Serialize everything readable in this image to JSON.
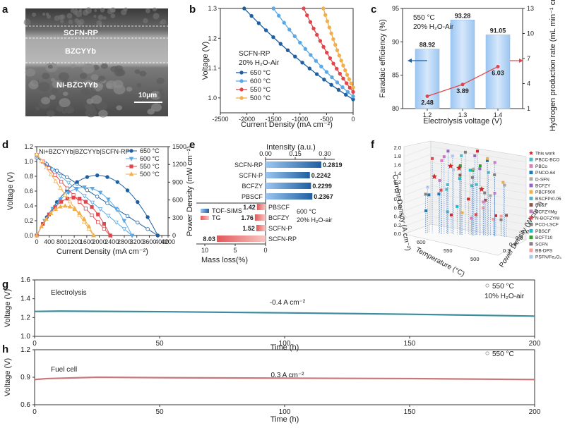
{
  "panels": {
    "a": "a",
    "b": "b",
    "c": "c",
    "d": "d",
    "e": "e",
    "f": "f",
    "g": "g",
    "h": "h"
  },
  "chart_data": [
    {
      "id": "a",
      "type": "other",
      "title": "SEM cross-section",
      "labels": [
        "SCFN-RP",
        "BZCYYb",
        "Ni-BZCYYb"
      ],
      "scale_bar": "10μm"
    },
    {
      "id": "b",
      "type": "line",
      "xlabel": "Current Density (mA cm⁻²)",
      "ylabel": "Voltage (V)",
      "xlim": [
        -2500,
        0
      ],
      "ylim": [
        0.95,
        1.3
      ],
      "xticks": [
        -2500,
        -2000,
        -1500,
        -1000,
        -500,
        0
      ],
      "yticks": [
        1.0,
        1.1,
        1.2,
        1.3
      ],
      "annotation": [
        "SCFN-RP",
        "20% H₂O-Air"
      ],
      "series": [
        {
          "name": "650 °C",
          "color": "#1f5fa0",
          "j0": -2050,
          "v0": 1.3,
          "ocv": 0.995
        },
        {
          "name": "600 °C",
          "color": "#5aa9e6",
          "j0": -1500,
          "v0": 1.3,
          "ocv": 1.005
        },
        {
          "name": "550 °C",
          "color": "#e0474c",
          "j0": -930,
          "v0": 1.3,
          "ocv": 1.02
        },
        {
          "name": "500 °C",
          "color": "#f2ae4a",
          "j0": -560,
          "v0": 1.3,
          "ocv": 1.035
        }
      ]
    },
    {
      "id": "c",
      "type": "bar",
      "xlabel": "Electrolysis voltage (V)",
      "ylabel": "Faradaic efficiency (%)",
      "ylabel_right": "Hydrogen production rate (mL min⁻¹ cm⁻²)",
      "categories": [
        "1.2",
        "1.3",
        "1.4"
      ],
      "values": [
        88.92,
        93.28,
        91.05
      ],
      "value_labels": [
        "88.92",
        "93.28",
        "91.05"
      ],
      "line_values": [
        2.48,
        3.89,
        6.03
      ],
      "line_labels": [
        "2.48",
        "3.89",
        "6.03"
      ],
      "ylim": [
        80,
        95
      ],
      "yticks": [
        80,
        85,
        90,
        95
      ],
      "ylim_right": [
        1,
        13
      ],
      "yticks_right": [
        1,
        4,
        7,
        10,
        13
      ],
      "annotation": [
        "550 °C",
        "20% H₂O-Air"
      ]
    },
    {
      "id": "d",
      "type": "line",
      "xlabel": "Current Density (mA cm⁻²)",
      "ylabel": "Voltage (V)",
      "ylabel_right": "Power Density (mW cm⁻²)",
      "xlim": [
        0,
        4200
      ],
      "ylim": [
        0,
        1.2
      ],
      "ylim_right": [
        0,
        1500
      ],
      "xticks": [
        0,
        400,
        800,
        1200,
        1600,
        2000,
        2400,
        2800,
        3200,
        3600,
        4000,
        4200
      ],
      "yticks": [
        0.0,
        0.2,
        0.4,
        0.6,
        0.8,
        1.0,
        1.2
      ],
      "yticks_right": [
        0,
        300,
        600,
        900,
        1200,
        1500
      ],
      "title": "Ni+BZCYYb|BZCYYb|SCFN-RP",
      "series": [
        {
          "name": "650 °C",
          "color": "#1f5fa0",
          "marker": "circle",
          "jmax": 3870,
          "ocv": 1.05
        },
        {
          "name": "600 °C",
          "color": "#5aa9e6",
          "marker": "tri-down",
          "jmax": 3050,
          "ocv": 1.07
        },
        {
          "name": "550 °C",
          "color": "#e0474c",
          "marker": "square",
          "jmax": 2350,
          "ocv": 1.09
        },
        {
          "name": "500 °C",
          "color": "#f2ae4a",
          "marker": "tri-up",
          "jmax": 1820,
          "ocv": 1.1
        }
      ]
    },
    {
      "id": "e",
      "type": "bar",
      "xlabel_top": "Intensity (a.u.)",
      "xlabel_bottom": "Mass loss(%)",
      "xticks_top": [
        "0.00",
        "0.15",
        "0.30"
      ],
      "xticks_bottom": [
        "10",
        "5",
        "0"
      ],
      "tof_categories": [
        "SCFN-RP",
        "SCFN-P",
        "BCFZY",
        "PBSCF"
      ],
      "tof_values": [
        0.2819,
        0.2242,
        0.2299,
        0.2367
      ],
      "tof_labels": [
        "0.2819",
        "0.2242",
        "0.2299",
        "0.2367"
      ],
      "tg_categories": [
        "PBSCF",
        "BCFZY",
        "SCFN-P",
        "SCFN-RP"
      ],
      "tg_values": [
        1.42,
        1.76,
        1.52,
        8.03
      ],
      "tg_labels": [
        "1.42",
        "1.76",
        "1.52",
        "8.03"
      ],
      "legend": [
        "TOF-SIMS",
        "TG"
      ],
      "annotation": [
        "600 °C",
        "20% H₂O-air"
      ]
    },
    {
      "id": "f",
      "type": "scatter",
      "xlabel": "Temperature (°C)",
      "ylabel": "Current Density (A cm⁻²)",
      "zlabel": "Power Density (W cm⁻²)",
      "zticks": [
        "0.0",
        "0.2",
        "0.4",
        "0.6",
        "0.8",
        "1.0",
        "1.2",
        "1.4",
        "1.6",
        "1.8",
        "2.0"
      ],
      "xticks": [
        "600",
        "550",
        "500"
      ],
      "pticks": [
        "0.3",
        "0.6",
        "0.9",
        "1.2"
      ],
      "legend": [
        "This work",
        "PBCC-BCO",
        "PBCo",
        "PNCO-64",
        "D-SFN",
        "BCFZY",
        "PBCF500",
        "BSCFPr0.05",
        "BSCF",
        "BCFZYMg",
        "N-BCFZYNi",
        "PCO-LSCF",
        "PBSCF",
        "BCFT10",
        "SCFN",
        "BB-DPS",
        "PSFN/Fe₂O₃"
      ],
      "legend_colors": [
        "#d62728",
        "#4cb6c4",
        "#e377c2",
        "#1f77b4",
        "#aaaaaa",
        "#9467bd",
        "#f2ae4a",
        "#4cb6c4",
        "#8c564b",
        "#c47ac4",
        "#e0474c",
        "#7f7f7f",
        "#17becf",
        "#2ca02c",
        "#7f7f7f",
        "#ff9896",
        "#aec7e8"
      ]
    },
    {
      "id": "g",
      "type": "line",
      "xlabel": "Time (h)",
      "ylabel": "Voltage (V)",
      "xlim": [
        0,
        200
      ],
      "ylim": [
        1.0,
        1.6
      ],
      "xticks": [
        0,
        50,
        100,
        150,
        200
      ],
      "yticks": [
        "1.0",
        "1.2",
        "1.4",
        "1.6"
      ],
      "title": "Electrolysis",
      "annotation": "-0.4 A cm⁻²",
      "legend": [
        "550 °C",
        "10% H₂O-air"
      ],
      "series": [
        {
          "name": "voltage",
          "color": "#3c8c9c",
          "x": [
            0,
            10,
            50,
            100,
            150,
            200
          ],
          "y": [
            1.265,
            1.268,
            1.262,
            1.25,
            1.235,
            1.215
          ]
        }
      ]
    },
    {
      "id": "h",
      "type": "line",
      "xlabel": "Time (h)",
      "ylabel": "Voltage (V)",
      "xlim": [
        0,
        200
      ],
      "ylim": [
        0.6,
        1.2
      ],
      "xticks": [
        0,
        50,
        100,
        150,
        200
      ],
      "yticks": [
        "0.6",
        "0.9",
        "1.2"
      ],
      "title": "Fuel cell",
      "annotation": "0.3 A cm⁻²",
      "legend": [
        "550 °C"
      ],
      "series": [
        {
          "name": "voltage",
          "color": "#c9787a",
          "x": [
            0,
            5,
            25,
            50,
            100,
            150,
            200
          ],
          "y": [
            0.875,
            0.885,
            0.9,
            0.895,
            0.89,
            0.885,
            0.875
          ]
        }
      ]
    }
  ]
}
